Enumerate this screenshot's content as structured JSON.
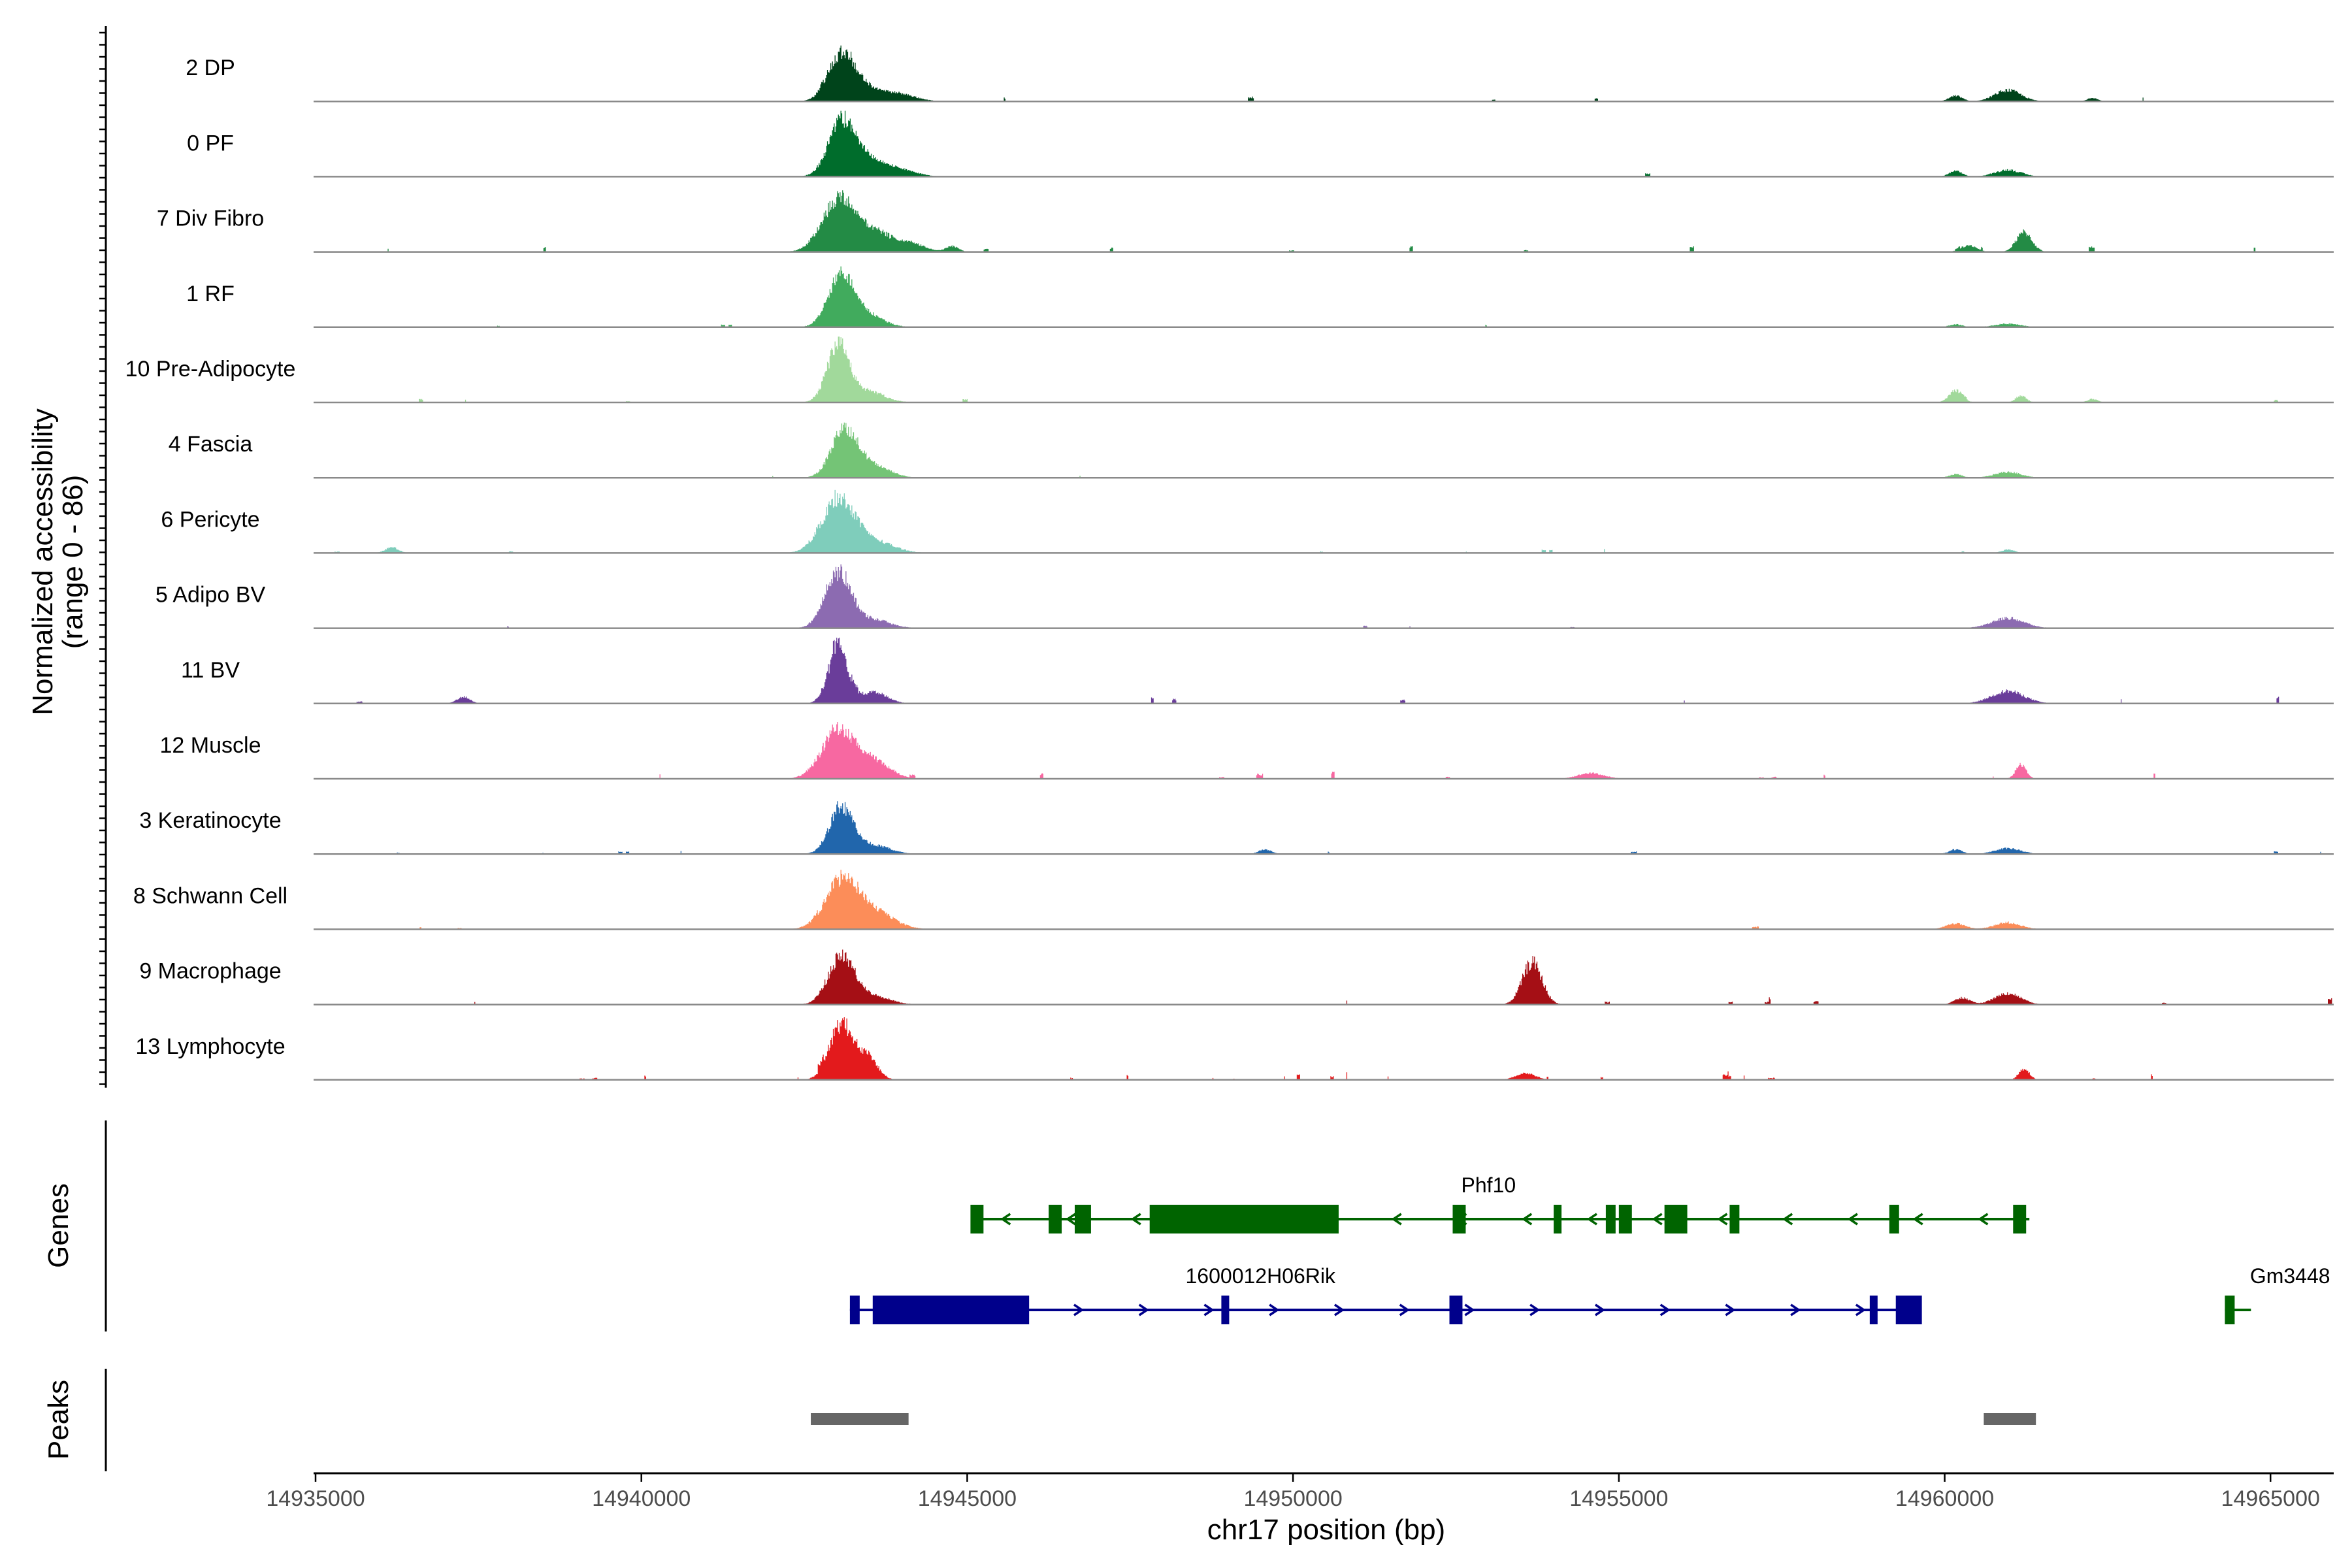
{
  "chart_data": {
    "type": "area",
    "title": "",
    "xlabel": "chr17 position (bp)",
    "ylabel_line1": "Normalized accessibility",
    "ylabel_line2": "(range 0 - 86)",
    "ylim": [
      0,
      86
    ],
    "xlim": [
      14935000,
      14966000
    ],
    "xticks": [
      14935000,
      14940000,
      14945000,
      14950000,
      14955000,
      14960000,
      14965000
    ],
    "x_tick_labels": [
      "14935000",
      "14940000",
      "14945000",
      "14950000",
      "14955000",
      "14960000",
      "14965000"
    ],
    "panel_titles": {
      "genes": "Genes",
      "peaks": "Peaks"
    },
    "tracks": [
      {
        "name": "2 DP",
        "color": "#00441b",
        "noise": 0.05,
        "spread": 0.25,
        "peaks": [
          [
            14943100,
            200,
            0.85
          ],
          [
            14943500,
            250,
            0.2
          ],
          [
            14944000,
            250,
            0.12
          ],
          [
            14961000,
            200,
            0.2
          ],
          [
            14960200,
            100,
            0.1
          ],
          [
            14962300,
            80,
            0.06
          ]
        ]
      },
      {
        "name": "0 PF",
        "color": "#006d2c",
        "noise": 0.02,
        "spread": 0.15,
        "peaks": [
          [
            14943100,
            200,
            0.95
          ],
          [
            14943500,
            250,
            0.3
          ],
          [
            14944000,
            250,
            0.12
          ],
          [
            14961000,
            200,
            0.12
          ],
          [
            14960200,
            100,
            0.1
          ]
        ]
      },
      {
        "name": "7 Div Fibro",
        "color": "#238b45",
        "noise": 0.12,
        "spread": 0.3,
        "peaks": [
          [
            14943050,
            250,
            0.9
          ],
          [
            14943600,
            300,
            0.35
          ],
          [
            14944200,
            200,
            0.12
          ],
          [
            14961250,
            120,
            0.35
          ],
          [
            14960400,
            120,
            0.12
          ],
          [
            14944800,
            100,
            0.1
          ]
        ]
      },
      {
        "name": "1 RF",
        "color": "#41ab5d",
        "noise": 0.02,
        "spread": 0.12,
        "peaks": [
          [
            14943100,
            200,
            0.9
          ],
          [
            14943500,
            250,
            0.2
          ],
          [
            14961000,
            200,
            0.06
          ],
          [
            14960200,
            100,
            0.05
          ]
        ]
      },
      {
        "name": "10 Pre-Adipocyte",
        "color": "#a1d99b",
        "noise": 0.05,
        "spread": 0.18,
        "peaks": [
          [
            14943050,
            170,
            1.0
          ],
          [
            14943500,
            250,
            0.2
          ],
          [
            14960200,
            100,
            0.22
          ],
          [
            14961200,
            80,
            0.12
          ],
          [
            14962300,
            80,
            0.06
          ]
        ]
      },
      {
        "name": "4 Fascia",
        "color": "#74c476",
        "noise": 0.02,
        "spread": 0.12,
        "peaks": [
          [
            14943150,
            200,
            0.85
          ],
          [
            14943600,
            250,
            0.2
          ],
          [
            14961000,
            200,
            0.1
          ],
          [
            14960200,
            100,
            0.06
          ]
        ]
      },
      {
        "name": "6 Pericyte",
        "color": "#7fcdbb",
        "noise": 0.05,
        "spread": 0.18,
        "peaks": [
          [
            14943050,
            250,
            0.95
          ],
          [
            14943600,
            300,
            0.2
          ],
          [
            14936200,
            100,
            0.1
          ],
          [
            14961000,
            100,
            0.06
          ]
        ]
      },
      {
        "name": "5 Adipo BV",
        "color": "#8c6bb1",
        "noise": 0.02,
        "spread": 0.1,
        "peaks": [
          [
            14943050,
            200,
            1.0
          ],
          [
            14943600,
            250,
            0.15
          ],
          [
            14961000,
            250,
            0.18
          ]
        ]
      },
      {
        "name": "11 BV",
        "color": "#6a3d9a",
        "noise": 0.18,
        "spread": 0.45,
        "peaks": [
          [
            14943050,
            150,
            1.0
          ],
          [
            14943600,
            200,
            0.2
          ],
          [
            14961000,
            250,
            0.22
          ],
          [
            14937300,
            100,
            0.12
          ]
        ]
      },
      {
        "name": "12 Muscle",
        "color": "#f768a1",
        "noise": 0.16,
        "spread": 0.4,
        "peaks": [
          [
            14943050,
            250,
            0.85
          ],
          [
            14943600,
            250,
            0.3
          ],
          [
            14961200,
            80,
            0.25
          ],
          [
            14954600,
            200,
            0.1
          ]
        ]
      },
      {
        "name": "3 Keratinocyte",
        "color": "#2166ac",
        "noise": 0.04,
        "spread": 0.12,
        "peaks": [
          [
            14943100,
            180,
            0.85
          ],
          [
            14943600,
            250,
            0.15
          ],
          [
            14949600,
            100,
            0.08
          ],
          [
            14961000,
            200,
            0.1
          ],
          [
            14960200,
            100,
            0.08
          ]
        ]
      },
      {
        "name": "8 Schwann Cell",
        "color": "#fc8d59",
        "noise": 0.09,
        "spread": 0.3,
        "peaks": [
          [
            14943100,
            250,
            0.85
          ],
          [
            14943600,
            300,
            0.3
          ],
          [
            14961000,
            200,
            0.12
          ],
          [
            14960200,
            150,
            0.1
          ]
        ]
      },
      {
        "name": "9 Macrophage",
        "color": "#a50f15",
        "noise": 0.12,
        "spread": 0.35,
        "peaks": [
          [
            14943100,
            200,
            0.85
          ],
          [
            14943600,
            250,
            0.15
          ],
          [
            14953700,
            150,
            0.75
          ],
          [
            14961000,
            200,
            0.2
          ],
          [
            14960300,
            120,
            0.12
          ]
        ]
      },
      {
        "name": "13 Lymphocyte",
        "color": "#e31a1c",
        "noise": 0.18,
        "spread": 0.42,
        "peaks": [
          [
            14943100,
            180,
            1.0
          ],
          [
            14943500,
            150,
            0.4
          ],
          [
            14961250,
            80,
            0.2
          ],
          [
            14953600,
            150,
            0.12
          ]
        ]
      }
    ],
    "genes": [
      {
        "name": "Phf10",
        "strand": "-",
        "start": 14945100,
        "end": 14961300,
        "color": "#006400",
        "exons": [
          [
            14945050,
            14945250,
            "small"
          ],
          [
            14946250,
            14946450,
            "small"
          ],
          [
            14946650,
            14946900,
            "small"
          ],
          [
            14947800,
            14950700,
            "utr"
          ],
          [
            14952450,
            14952650,
            "small"
          ],
          [
            14954000,
            14954120,
            "small"
          ],
          [
            14954800,
            14954950,
            "small"
          ],
          [
            14955000,
            14955200,
            "small"
          ],
          [
            14955700,
            14956050,
            "small"
          ],
          [
            14956700,
            14956850,
            "small"
          ],
          [
            14959150,
            14959300,
            "small"
          ],
          [
            14961050,
            14961250,
            "small"
          ]
        ]
      },
      {
        "name": "1600012H06Rik",
        "strand": "+",
        "start": 14943200,
        "end": 14959600,
        "color": "#00008b",
        "exons": [
          [
            14943200,
            14943350,
            "small"
          ],
          [
            14943550,
            14945950,
            "utr"
          ],
          [
            14948900,
            14948950,
            "small"
          ],
          [
            14952400,
            14952600,
            "small"
          ],
          [
            14958850,
            14958950,
            "small"
          ],
          [
            14959250,
            14959650,
            "utr"
          ]
        ]
      },
      {
        "name": "Gm3448",
        "strand": "+",
        "start": 14964300,
        "end": 14964700,
        "color": "#006400",
        "exons": [
          [
            14964300,
            14964450,
            "small"
          ]
        ]
      }
    ],
    "peaks": [
      [
        14942600,
        14944100
      ],
      [
        14960600,
        14961400
      ]
    ]
  }
}
